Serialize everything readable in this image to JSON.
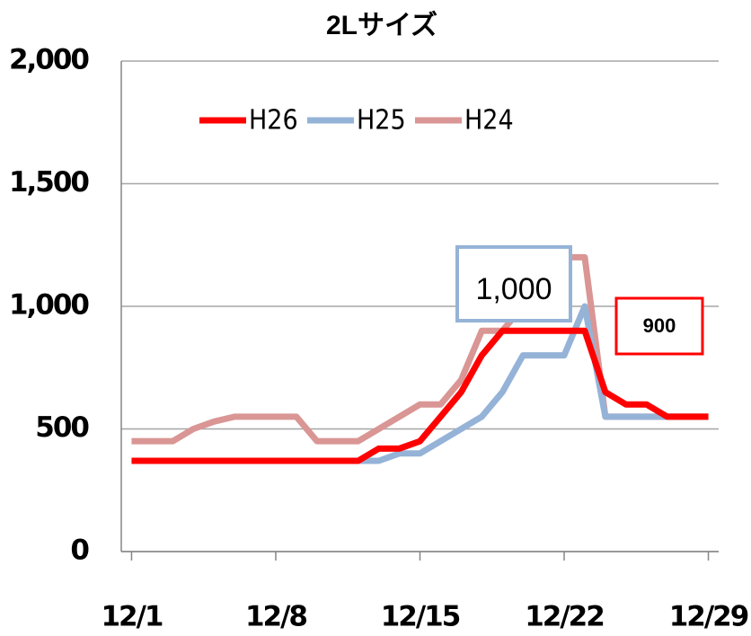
{
  "chart_data": {
    "type": "line",
    "title": "2Lサイズ",
    "x": [
      1,
      2,
      3,
      4,
      5,
      6,
      7,
      8,
      9,
      10,
      11,
      12,
      13,
      14,
      15,
      16,
      17,
      18,
      19,
      20,
      21,
      22,
      23,
      24,
      25,
      26,
      27,
      28,
      29
    ],
    "xlim": [
      0.5,
      29.5
    ],
    "xticks": [
      {
        "value": 1,
        "label": "12/1"
      },
      {
        "value": 8,
        "label": "12/8"
      },
      {
        "value": 15,
        "label": "12/15"
      },
      {
        "value": 22,
        "label": "12/22"
      },
      {
        "value": 29,
        "label": "12/29"
      }
    ],
    "ylim": [
      0,
      2000
    ],
    "yticks": [
      0,
      {
        "value": 500,
        "label": "500"
      },
      {
        "value": 1000,
        "label": "1,000"
      },
      {
        "value": 1500,
        "label": "1,500"
      },
      {
        "value": 2000,
        "label": "2,000"
      }
    ],
    "grid": true,
    "legend": "top",
    "series": [
      {
        "name": "H26",
        "color": "#ff0000",
        "values": [
          370,
          370,
          370,
          370,
          370,
          370,
          370,
          370,
          370,
          370,
          370,
          370,
          420,
          420,
          450,
          550,
          650,
          800,
          900,
          900,
          900,
          900,
          900,
          650,
          600,
          600,
          550,
          550,
          550
        ]
      },
      {
        "name": "H25",
        "color": "#95b3d7",
        "values": [
          370,
          370,
          370,
          370,
          370,
          370,
          370,
          370,
          370,
          370,
          370,
          370,
          370,
          400,
          400,
          450,
          500,
          550,
          650,
          800,
          800,
          800,
          1000,
          550,
          550,
          550,
          550,
          550,
          550
        ]
      },
      {
        "name": "H24",
        "color": "#d99694",
        "values": [
          450,
          450,
          450,
          500,
          530,
          550,
          550,
          550,
          550,
          450,
          450,
          450,
          500,
          550,
          600,
          600,
          700,
          900,
          900,
          1000,
          1200,
          1200,
          1200,
          550,
          550,
          550,
          550,
          550,
          550
        ]
      }
    ],
    "annotations": [
      {
        "text": "1,000",
        "color": "#95b3d7"
      },
      {
        "text": "900",
        "color": "#ff0000"
      }
    ]
  }
}
